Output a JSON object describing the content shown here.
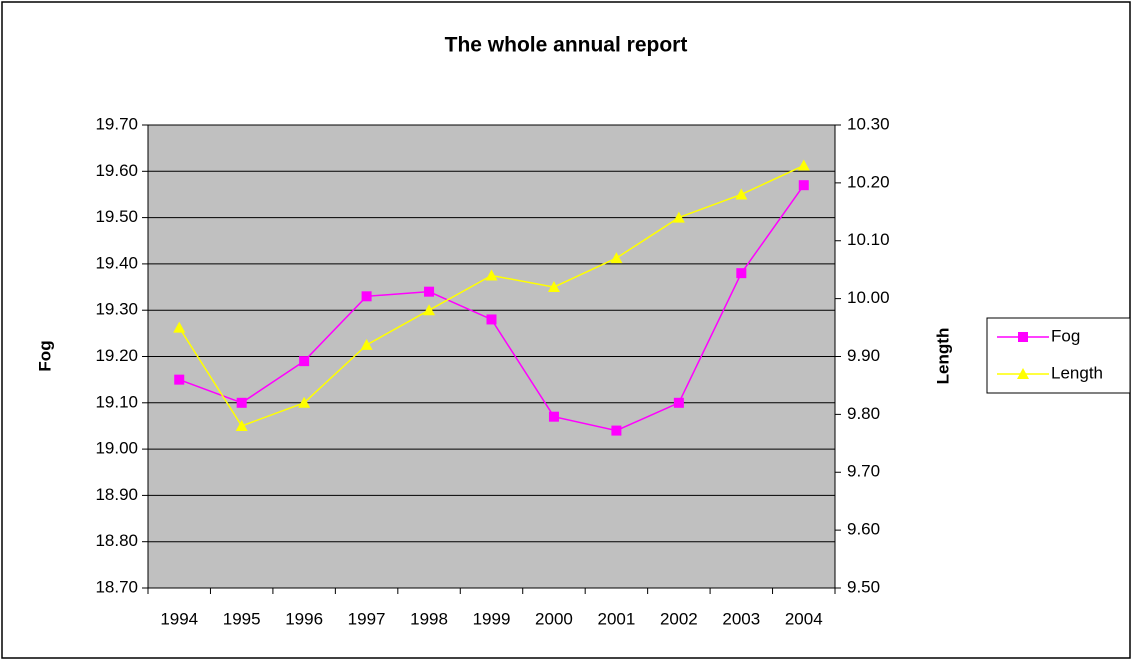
{
  "chart_data": {
    "type": "line",
    "title": "The whole annual report",
    "y_label": "Fog",
    "y2_label": "Length",
    "categories": [
      "1994",
      "1995",
      "1996",
      "1997",
      "1998",
      "1999",
      "2000",
      "2001",
      "2002",
      "2003",
      "2004"
    ],
    "series": [
      {
        "name": "Fog",
        "color": "#ff00ff",
        "marker": "square",
        "axis": "y",
        "values": [
          19.15,
          19.1,
          19.19,
          19.33,
          19.34,
          19.28,
          19.07,
          19.04,
          19.1,
          19.38,
          19.57
        ]
      },
      {
        "name": "Length",
        "color": "#ffff00",
        "marker": "triangle",
        "axis": "y2",
        "values": [
          9.95,
          9.78,
          9.82,
          9.92,
          9.98,
          10.04,
          10.02,
          10.07,
          10.14,
          10.18,
          10.23
        ]
      }
    ],
    "ylim": [
      18.7,
      19.7
    ],
    "yticks": [
      {
        "value": 18.7,
        "label": "18.70"
      },
      {
        "value": 18.8,
        "label": "18.80"
      },
      {
        "value": 18.9,
        "label": "18.90"
      },
      {
        "value": 19.0,
        "label": "19.00"
      },
      {
        "value": 19.1,
        "label": "19.10"
      },
      {
        "value": 19.2,
        "label": "19.20"
      },
      {
        "value": 19.3,
        "label": "19.30"
      },
      {
        "value": 19.4,
        "label": "19.40"
      },
      {
        "value": 19.5,
        "label": "19.50"
      },
      {
        "value": 19.6,
        "label": "19.60"
      },
      {
        "value": 19.7,
        "label": "19.70"
      }
    ],
    "y2lim": [
      9.5,
      10.3
    ],
    "y2ticks": [
      {
        "value": 9.5,
        "label": "9.50"
      },
      {
        "value": 9.6,
        "label": "9.60"
      },
      {
        "value": 9.7,
        "label": "9.70"
      },
      {
        "value": 9.8,
        "label": "9.80"
      },
      {
        "value": 9.9,
        "label": "9.90"
      },
      {
        "value": 10.0,
        "label": "10.00"
      },
      {
        "value": 10.1,
        "label": "10.10"
      },
      {
        "value": 10.2,
        "label": "10.20"
      },
      {
        "value": 10.3,
        "label": "10.30"
      }
    ],
    "grid": true,
    "plot_background": "#c0c0c0",
    "legend": "right"
  }
}
